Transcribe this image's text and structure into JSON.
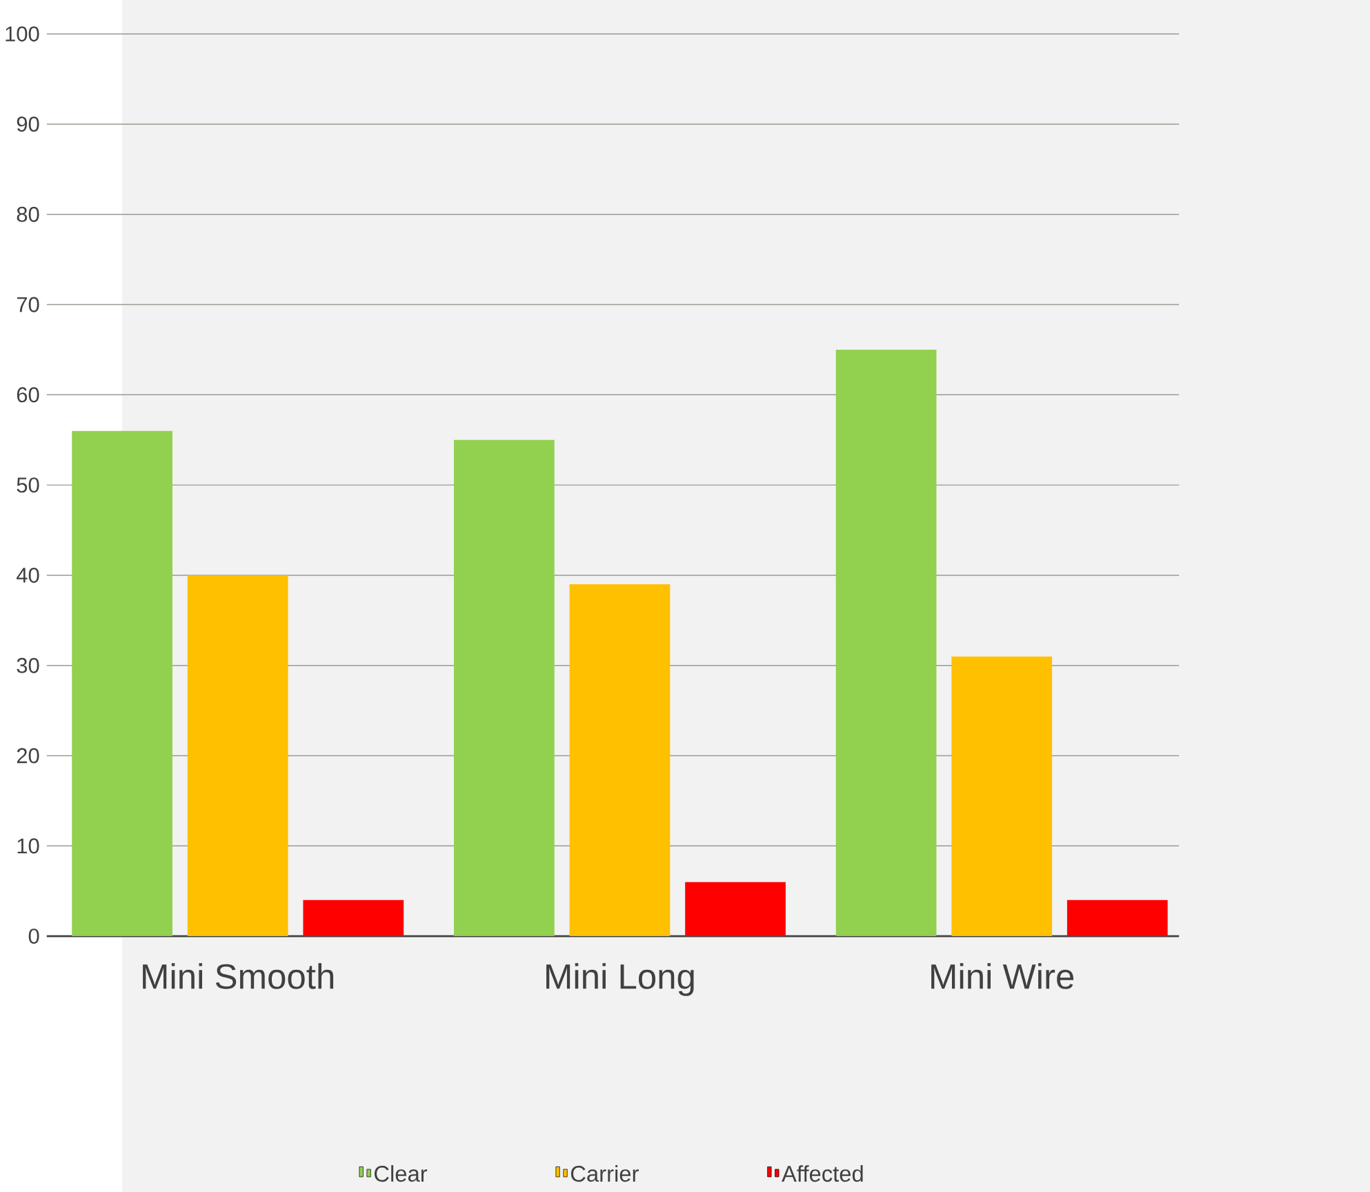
{
  "chart_data": {
    "type": "bar",
    "categories": [
      "Mini Smooth",
      "Mini Long",
      "Mini Wire"
    ],
    "series": [
      {
        "name": "Clear",
        "color": "#92d050",
        "values": [
          56,
          55,
          65
        ]
      },
      {
        "name": "Carrier",
        "color": "#ffc000",
        "values": [
          40,
          39,
          31
        ]
      },
      {
        "name": "Affected",
        "color": "#ff0000",
        "values": [
          4,
          6,
          4
        ]
      }
    ],
    "ylim": [
      0,
      100
    ],
    "yticks": [
      0,
      10,
      20,
      30,
      40,
      50,
      60,
      70,
      80,
      90,
      100
    ],
    "grid": "y",
    "legend": "bottom"
  }
}
